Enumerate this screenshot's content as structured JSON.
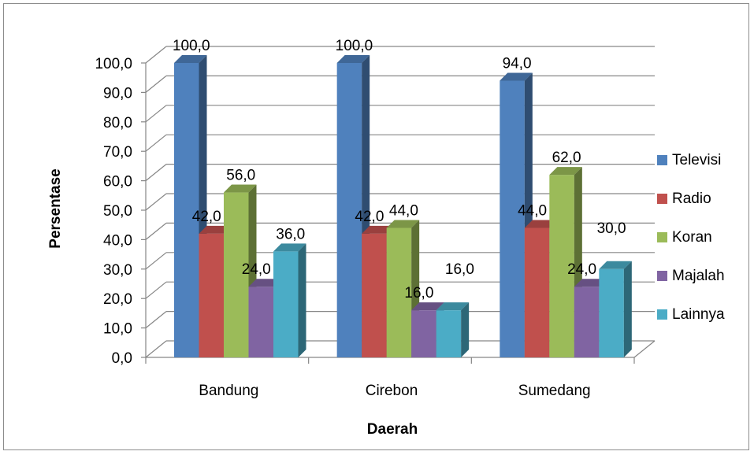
{
  "chart_data": {
    "type": "bar",
    "title": "",
    "xlabel": "Daerah",
    "ylabel": "Persentase",
    "categories": [
      "Bandung",
      "Cirebon",
      "Sumedang"
    ],
    "yticks": [
      "0,0",
      "10,0",
      "20,0",
      "30,0",
      "40,0",
      "50,0",
      "60,0",
      "70,0",
      "80,0",
      "90,0",
      "100,0"
    ],
    "ylim": [
      0,
      100
    ],
    "grid": true,
    "legend_position": "right",
    "series": [
      {
        "name": "Televisi",
        "color": "#4f81bd",
        "values": [
          100,
          100,
          94
        ],
        "labels": [
          "100,0",
          "100,0",
          "94,0"
        ]
      },
      {
        "name": "Radio",
        "color": "#c0504d",
        "values": [
          42,
          42,
          44
        ],
        "labels": [
          "42,0",
          "42,0",
          "44,0"
        ]
      },
      {
        "name": "Koran",
        "color": "#9bbb59",
        "values": [
          56,
          44,
          62
        ],
        "labels": [
          "56,0",
          "44,0",
          "62,0"
        ]
      },
      {
        "name": "Majalah",
        "color": "#8064a2",
        "values": [
          24,
          16,
          24
        ],
        "labels": [
          "24,0",
          "16,0",
          "24,0"
        ]
      },
      {
        "name": "Lainnya",
        "color": "#4bacc6",
        "values": [
          36,
          16,
          30
        ],
        "labels": [
          "36,0",
          "16,0",
          "30,0"
        ]
      }
    ]
  }
}
